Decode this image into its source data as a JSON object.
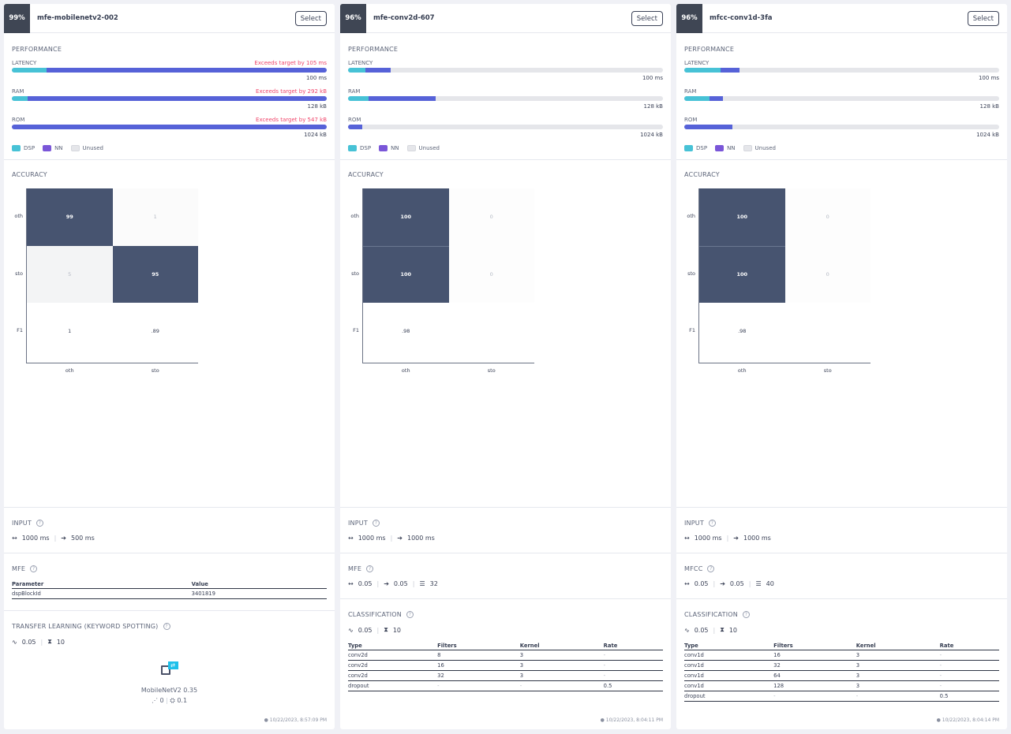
{
  "legend": {
    "dsp": "DSP",
    "nn": "NN",
    "unused": "Unused"
  },
  "colors": {
    "dsp": "#47c2d6",
    "nn": "#5662d8",
    "unused": "#e5e6ea",
    "warn": "#f0456a",
    "cell_dark": "#475470"
  },
  "select_label": "Select",
  "cards": [
    {
      "accuracy": "99%",
      "name": "mfe-mobilenetv2-002",
      "performance_title": "PERFORMANCE",
      "metrics": [
        {
          "label": "LATENCY",
          "warning": "Exceeds target by 105 ms",
          "value": "100 ms",
          "dsp_pct": 11,
          "nn_pct": 89
        },
        {
          "label": "RAM",
          "warning": "Exceeds target by 292 kB",
          "value": "128 kB",
          "dsp_pct": 5,
          "nn_pct": 95
        },
        {
          "label": "ROM",
          "warning": "Exceeds target by 547 kB",
          "value": "1024 kB",
          "dsp_pct": 0,
          "nn_pct": 100
        }
      ],
      "accuracy_title": "ACCURACY",
      "matrix": {
        "rows": [
          "oth",
          "sto"
        ],
        "cols": [
          "oth",
          "sto"
        ],
        "values": [
          [
            "99",
            "1"
          ],
          [
            "5",
            "95"
          ]
        ],
        "shade": [
          [
            0.99,
            0.01
          ],
          [
            0.05,
            0.95
          ]
        ],
        "f1": [
          "1",
          ".89"
        ],
        "f1_label": "F1"
      },
      "input": {
        "title": "INPUT",
        "window": "1000 ms",
        "stride": "500 ms"
      },
      "dsp": {
        "title": "MFE",
        "table": {
          "headers": [
            "Parameter",
            "Value"
          ],
          "rows": [
            [
              "dspBlockId",
              "3401819"
            ]
          ]
        }
      },
      "learn": {
        "title": "TRANSFER LEARNING (KEYWORD SPOTTING)",
        "lr": "0.05",
        "epochs": "10",
        "model": "MobileNetV2 0.35",
        "neurons": "0",
        "dropout": "0.1"
      },
      "timestamp": "10/22/2023, 8:57:09 PM"
    },
    {
      "accuracy": "96%",
      "name": "mfe-conv2d-607",
      "performance_title": "PERFORMANCE",
      "metrics": [
        {
          "label": "LATENCY",
          "warning": "",
          "value": "100 ms",
          "dsp_pct": 5.5,
          "nn_pct": 8.1
        },
        {
          "label": "RAM",
          "warning": "",
          "value": "128 kB",
          "dsp_pct": 6.5,
          "nn_pct": 21.2
        },
        {
          "label": "ROM",
          "warning": "",
          "value": "1024 kB",
          "dsp_pct": 0,
          "nn_pct": 4.5
        }
      ],
      "accuracy_title": "ACCURACY",
      "matrix": {
        "rows": [
          "oth",
          "sto"
        ],
        "cols": [
          "oth",
          "sto"
        ],
        "values": [
          [
            "100",
            "0"
          ],
          [
            "100",
            "0"
          ]
        ],
        "shade": [
          [
            1,
            0
          ],
          [
            1,
            0
          ]
        ],
        "f1": [
          ".98",
          ""
        ],
        "f1_label": "F1"
      },
      "input": {
        "title": "INPUT",
        "window": "1000 ms",
        "stride": "1000 ms"
      },
      "dsp": {
        "title": "MFE",
        "frame_length": "0.05",
        "frame_stride": "0.05",
        "filters": "32"
      },
      "learn": {
        "title": "CLASSIFICATION",
        "lr": "0.05",
        "epochs": "10",
        "table": {
          "headers": [
            "Type",
            "Filters",
            "Kernel",
            "Rate"
          ],
          "rows": [
            [
              "conv2d",
              "8",
              "3",
              "-"
            ],
            [
              "conv2d",
              "16",
              "3",
              "-"
            ],
            [
              "conv2d",
              "32",
              "3",
              "-"
            ],
            [
              "dropout",
              "-",
              "-",
              "0.5"
            ]
          ]
        }
      },
      "timestamp": "10/22/2023, 8:04:11 PM"
    },
    {
      "accuracy": "96%",
      "name": "mfcc-conv1d-3fa",
      "performance_title": "PERFORMANCE",
      "metrics": [
        {
          "label": "LATENCY",
          "warning": "",
          "value": "100 ms",
          "dsp_pct": 11.5,
          "nn_pct": 6.1
        },
        {
          "label": "RAM",
          "warning": "",
          "value": "128 kB",
          "dsp_pct": 8,
          "nn_pct": 4.2
        },
        {
          "label": "ROM",
          "warning": "",
          "value": "1024 kB",
          "dsp_pct": 0,
          "nn_pct": 15.3
        }
      ],
      "accuracy_title": "ACCURACY",
      "matrix": {
        "rows": [
          "oth",
          "sto"
        ],
        "cols": [
          "oth",
          "sto"
        ],
        "values": [
          [
            "100",
            "0"
          ],
          [
            "100",
            "0"
          ]
        ],
        "shade": [
          [
            1,
            0
          ],
          [
            1,
            0
          ]
        ],
        "f1": [
          ".98",
          ""
        ],
        "f1_label": "F1"
      },
      "input": {
        "title": "INPUT",
        "window": "1000 ms",
        "stride": "1000 ms"
      },
      "dsp": {
        "title": "MFCC",
        "frame_length": "0.05",
        "frame_stride": "0.05",
        "filters": "40"
      },
      "learn": {
        "title": "CLASSIFICATION",
        "lr": "0.05",
        "epochs": "10",
        "table": {
          "headers": [
            "Type",
            "Filters",
            "Kernel",
            "Rate"
          ],
          "rows": [
            [
              "conv1d",
              "16",
              "3",
              "-"
            ],
            [
              "conv1d",
              "32",
              "3",
              "-"
            ],
            [
              "conv1d",
              "64",
              "3",
              "-"
            ],
            [
              "conv1d",
              "128",
              "3",
              "-"
            ],
            [
              "dropout",
              "-",
              "-",
              "0.5"
            ]
          ]
        }
      },
      "timestamp": "10/22/2023, 8:04:14 PM"
    }
  ]
}
